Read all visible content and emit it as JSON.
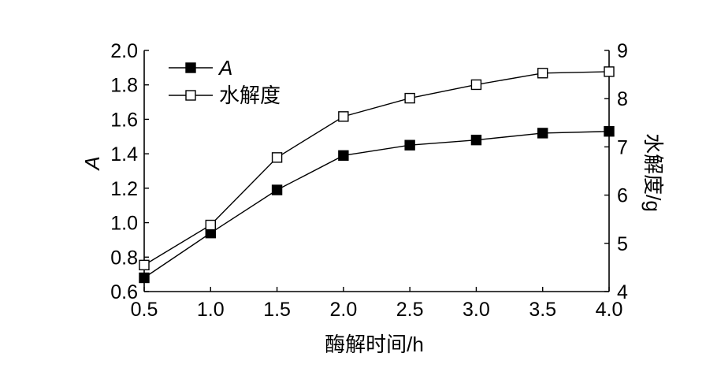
{
  "chart_data": {
    "type": "line",
    "x": [
      0.5,
      1.0,
      1.5,
      2.0,
      2.5,
      3.0,
      3.5,
      4.0
    ],
    "x_tick_labels": [
      "0.5",
      "1.0",
      "1.5",
      "2.0",
      "2.5",
      "3.0",
      "3.5",
      "4.0"
    ],
    "xlabel": "酶解时间/h",
    "xlim": [
      0.5,
      4.0
    ],
    "y_left": {
      "label": "A",
      "lim": [
        0.6,
        2.0
      ],
      "tick_labels": [
        "0.6",
        "0.8",
        "1.0",
        "1.2",
        "1.4",
        "1.6",
        "1.8",
        "2.0"
      ]
    },
    "y_right": {
      "label": "水解度/g",
      "lim": [
        4,
        9
      ],
      "tick_labels": [
        "4",
        "5",
        "6",
        "7",
        "8",
        "9"
      ]
    },
    "series": [
      {
        "name": "A",
        "axis": "left",
        "marker": "filled-square",
        "values": [
          0.68,
          0.94,
          1.19,
          1.39,
          1.45,
          1.48,
          1.52,
          1.53
        ]
      },
      {
        "name": "水解度",
        "axis": "right",
        "marker": "open-square",
        "values": [
          4.55,
          5.38,
          6.78,
          7.63,
          8.01,
          8.29,
          8.53,
          8.56
        ]
      }
    ],
    "legend_position": "top-left",
    "grid": false,
    "colors": {
      "line": "#000000",
      "background": "#ffffff"
    }
  }
}
